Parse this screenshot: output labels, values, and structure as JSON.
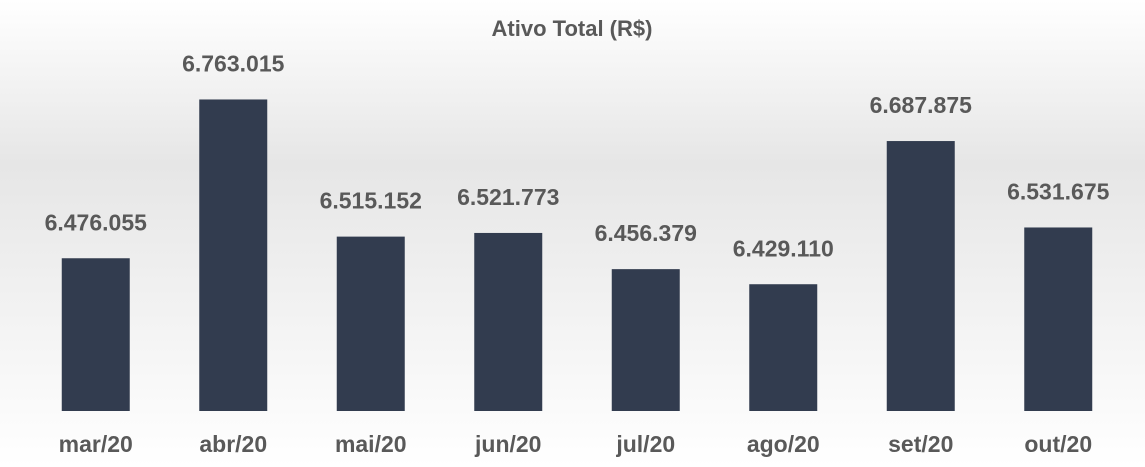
{
  "chart_data": {
    "type": "bar",
    "title": "Ativo Total (R$)",
    "categories": [
      "mar/20",
      "abr/20",
      "mai/20",
      "jun/20",
      "jul/20",
      "ago/20",
      "set/20",
      "out/20"
    ],
    "values": [
      6476055,
      6763015,
      6515152,
      6521773,
      6456379,
      6429110,
      6687875,
      6531675
    ],
    "value_labels": [
      "6.476.055",
      "6.763.015",
      "6.515.152",
      "6.521.773",
      "6.456.379",
      "6.429.110",
      "6.687.875",
      "6.531.675"
    ],
    "color": "#323c4f",
    "ylim": [
      6200000,
      6800000
    ]
  }
}
